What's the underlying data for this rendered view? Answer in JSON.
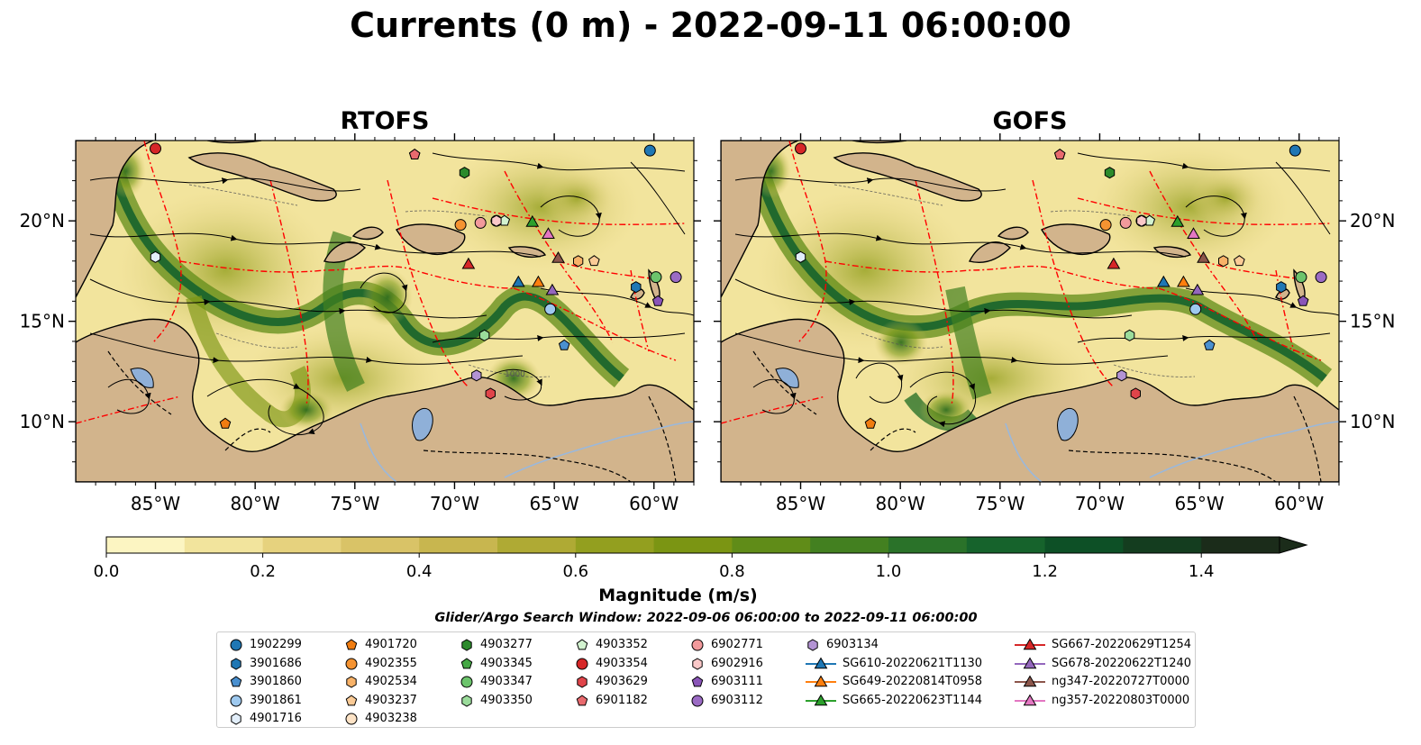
{
  "title": "Currents (0 m) - 2022-09-11 06:00:00",
  "panels": [
    {
      "title": "RTOFS"
    },
    {
      "title": "GOFS"
    }
  ],
  "map": {
    "lon_range": [
      -89,
      -58
    ],
    "lat_range": [
      7,
      24
    ],
    "lon_ticks": [
      "85°W",
      "80°W",
      "75°W",
      "70°W",
      "65°W",
      "60°W"
    ],
    "lat_ticks": [
      "20°N",
      "15°N",
      "10°N"
    ],
    "land_color": "#d2b48c",
    "lake_color": "#8fb0d8",
    "eez_line_color": "#ff0000",
    "contour_label": "1000"
  },
  "colorbar": {
    "label": "Magnitude (m/s)",
    "ticks": [
      "0.0",
      "0.2",
      "0.4",
      "0.6",
      "0.8",
      "1.0",
      "1.2",
      "1.4"
    ],
    "range": [
      0,
      1.5
    ],
    "extend": "max",
    "colors": [
      "#fcf5c2",
      "#f2e49d",
      "#e6d27e",
      "#d9c367",
      "#c8b64f",
      "#afaa34",
      "#939f1f",
      "#7b9513",
      "#608c18",
      "#438020",
      "#2a7229",
      "#16632c",
      "#0d5026",
      "#143d1f",
      "#1b2c1a"
    ]
  },
  "search_window": "Glider/Argo Search Window: 2022-09-06 06:00:00 to 2022-09-11 06:00:00",
  "legend": {
    "columns": [
      [
        {
          "label": "1902299",
          "marker": "circle",
          "color": "#1f77b4"
        },
        {
          "label": "3901686",
          "marker": "hexagon",
          "color": "#1f77b4"
        },
        {
          "label": "3901860",
          "marker": "pentagon",
          "color": "#4a90d0"
        },
        {
          "label": "3901861",
          "marker": "circle",
          "color": "#9ec9ef"
        },
        {
          "label": "4901716",
          "marker": "hexagon",
          "color": "#e2eefa"
        }
      ],
      [
        {
          "label": "4901720",
          "marker": "pentagon",
          "color": "#f07c10"
        },
        {
          "label": "4902355",
          "marker": "circle",
          "color": "#f59331"
        },
        {
          "label": "4902534",
          "marker": "hexagon",
          "color": "#f8b268"
        },
        {
          "label": "4903237",
          "marker": "pentagon",
          "color": "#fbcb96"
        },
        {
          "label": "4903238",
          "marker": "circle",
          "color": "#fde3c6"
        }
      ],
      [
        {
          "label": "4903277",
          "marker": "hexagon",
          "color": "#2c8a2c"
        },
        {
          "label": "4903345",
          "marker": "pentagon",
          "color": "#45a845"
        },
        {
          "label": "4903347",
          "marker": "circle",
          "color": "#6cc46c"
        },
        {
          "label": "4903350",
          "marker": "hexagon",
          "color": "#9bdc9b"
        }
      ],
      [
        {
          "label": "4903352",
          "marker": "pentagon",
          "color": "#d3f3d0"
        },
        {
          "label": "4903354",
          "marker": "circle",
          "color": "#d62728"
        },
        {
          "label": "4903629",
          "marker": "hexagon",
          "color": "#e0454a"
        },
        {
          "label": "6901182",
          "marker": "pentagon",
          "color": "#e96a6e"
        }
      ],
      [
        {
          "label": "6902771",
          "marker": "circle",
          "color": "#f29a9c"
        },
        {
          "label": "6902916",
          "marker": "hexagon",
          "color": "#fac8c8"
        },
        {
          "label": "6903111",
          "marker": "pentagon",
          "color": "#8a55b8"
        },
        {
          "label": "6903112",
          "marker": "circle",
          "color": "#9b6bc4"
        }
      ],
      [
        {
          "label": "6903134",
          "marker": "hexagon",
          "color": "#b393d4"
        },
        {
          "label": "SG610-20220621T1130",
          "marker": "triangle-line",
          "color": "#1f77b4"
        },
        {
          "label": "SG649-20220814T0958",
          "marker": "triangle-line",
          "color": "#ff7f0e"
        },
        {
          "label": "SG665-20220623T1144",
          "marker": "triangle-line",
          "color": "#2ca02c"
        }
      ],
      [
        {
          "label": "SG667-20220629T1254",
          "marker": "triangle-line",
          "color": "#d62728"
        },
        {
          "label": "SG678-20220622T1240",
          "marker": "triangle-line",
          "color": "#9467bd"
        },
        {
          "label": "ng347-20220727T0000",
          "marker": "triangle-line",
          "color": "#8c564b"
        },
        {
          "label": "ng357-20220803T0000",
          "marker": "triangle-line",
          "color": "#e377c2"
        }
      ]
    ]
  },
  "markers": [
    {
      "id": "1902299",
      "lon": -60.2,
      "lat": 23.5
    },
    {
      "id": "3901686",
      "lon": -60.9,
      "lat": 16.7
    },
    {
      "id": "3901860",
      "lon": -64.5,
      "lat": 13.8
    },
    {
      "id": "3901861",
      "lon": -65.2,
      "lat": 15.6
    },
    {
      "id": "4901716",
      "lon": -85.0,
      "lat": 18.2
    },
    {
      "id": "4901720",
      "lon": -81.5,
      "lat": 9.9
    },
    {
      "id": "4902355",
      "lon": -69.7,
      "lat": 19.8
    },
    {
      "id": "4902534",
      "lon": -63.8,
      "lat": 18.0
    },
    {
      "id": "4903237",
      "lon": -63.0,
      "lat": 18.0
    },
    {
      "id": "4903238",
      "lon": -67.9,
      "lat": 20.0
    },
    {
      "id": "4903277",
      "lon": -69.5,
      "lat": 22.4
    },
    {
      "id": "4903345",
      "lon": -72.0,
      "lat": 23.3
    },
    {
      "id": "4903347",
      "lon": -59.9,
      "lat": 17.2
    },
    {
      "id": "4903350",
      "lon": -68.5,
      "lat": 14.3
    },
    {
      "id": "4903352",
      "lon": -67.5,
      "lat": 20.0
    },
    {
      "id": "4903354",
      "lon": -85.0,
      "lat": 23.6
    },
    {
      "id": "4903629",
      "lon": -68.2,
      "lat": 11.4
    },
    {
      "id": "6901182",
      "lon": -72.0,
      "lat": 23.3
    },
    {
      "id": "6902771",
      "lon": -68.7,
      "lat": 19.9
    },
    {
      "id": "6902916",
      "lon": -67.9,
      "lat": 20.0
    },
    {
      "id": "6903111",
      "lon": -59.8,
      "lat": 16.0
    },
    {
      "id": "6903112",
      "lon": -58.9,
      "lat": 17.2
    },
    {
      "id": "6903134",
      "lon": -68.9,
      "lat": 12.3
    },
    {
      "id": "SG610-20220621T1130",
      "lon": -66.8,
      "lat": 16.9
    },
    {
      "id": "SG649-20220814T0958",
      "lon": -65.8,
      "lat": 16.9
    },
    {
      "id": "SG665-20220623T1144",
      "lon": -66.1,
      "lat": 19.9
    },
    {
      "id": "SG667-20220629T1254",
      "lon": -69.3,
      "lat": 17.8
    },
    {
      "id": "SG678-20220622T1240",
      "lon": -65.1,
      "lat": 16.5
    },
    {
      "id": "ng347-20220727T0000",
      "lon": -64.8,
      "lat": 18.1
    },
    {
      "id": "ng357-20220803T0000",
      "lon": -65.3,
      "lat": 19.3
    }
  ]
}
